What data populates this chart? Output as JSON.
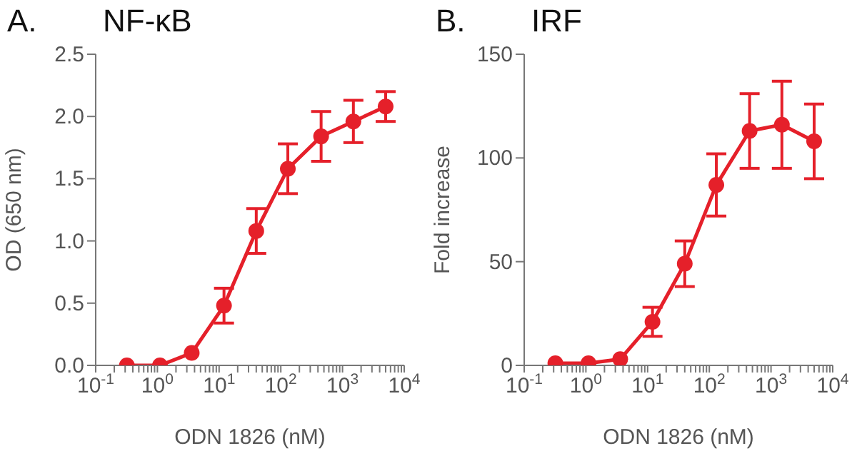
{
  "chart_data": [
    {
      "type": "line",
      "title": "NF-κB",
      "annotations": [
        "A."
      ],
      "xlabel": "ODN 1826 (nM)",
      "ylabel": "OD (650 nm)",
      "log": "x",
      "marker": "circle",
      "line_style": "solid",
      "color": "#e5202a",
      "x": [
        0.32,
        1.1,
        3.6,
        12,
        40,
        130,
        450,
        1500,
        5000
      ],
      "values": [
        0,
        0,
        0.1,
        0.48,
        1.08,
        1.58,
        1.84,
        1.96,
        2.08
      ],
      "errors": [
        null,
        null,
        null,
        0.14,
        0.18,
        0.2,
        0.2,
        0.17,
        0.12
      ],
      "xlim": [
        0.1,
        10000
      ],
      "xticks": [
        {
          "value": 0.1,
          "label": "10$^{-1}$"
        },
        {
          "value": 0.2,
          "label": null
        },
        {
          "value": 0.3,
          "label": null
        },
        {
          "value": 0.4,
          "label": null
        },
        {
          "value": 0.5,
          "label": null
        },
        {
          "value": 0.6,
          "label": null
        },
        {
          "value": 0.7,
          "label": null
        },
        {
          "value": 0.8,
          "label": null
        },
        {
          "value": 0.9,
          "label": null
        },
        {
          "value": 1,
          "label": "10$^{0}$"
        },
        {
          "value": 2,
          "label": null
        },
        {
          "value": 3,
          "label": null
        },
        {
          "value": 4,
          "label": null
        },
        {
          "value": 5,
          "label": null
        },
        {
          "value": 6,
          "label": null
        },
        {
          "value": 7,
          "label": null
        },
        {
          "value": 8,
          "label": null
        },
        {
          "value": 9,
          "label": null
        },
        {
          "value": 10,
          "label": "10$^{1}$"
        },
        {
          "value": 20,
          "label": null
        },
        {
          "value": 30,
          "label": null
        },
        {
          "value": 40,
          "label": null
        },
        {
          "value": 50,
          "label": null
        },
        {
          "value": 60,
          "label": null
        },
        {
          "value": 70,
          "label": null
        },
        {
          "value": 80,
          "label": null
        },
        {
          "value": 90,
          "label": null
        },
        {
          "value": 100,
          "label": "10$^{2}$"
        },
        {
          "value": 200,
          "label": null
        },
        {
          "value": 300,
          "label": null
        },
        {
          "value": 400,
          "label": null
        },
        {
          "value": 500,
          "label": null
        },
        {
          "value": 600,
          "label": null
        },
        {
          "value": 700,
          "label": null
        },
        {
          "value": 800,
          "label": null
        },
        {
          "value": 900,
          "label": null
        },
        {
          "value": 1000,
          "label": "10$^{3}$"
        },
        {
          "value": 2000,
          "label": null
        },
        {
          "value": 3000,
          "label": null
        },
        {
          "value": 4000,
          "label": null
        },
        {
          "value": 5000,
          "label": null
        },
        {
          "value": 6000,
          "label": null
        },
        {
          "value": 7000,
          "label": null
        },
        {
          "value": 8000,
          "label": null
        },
        {
          "value": 9000,
          "label": null
        },
        {
          "value": 10000,
          "label": "10$^{4}$"
        }
      ],
      "ylim": [
        0,
        2.5
      ],
      "yticks": [
        {
          "value": 0,
          "label": "0.0"
        },
        {
          "value": 0.5,
          "label": "0.5"
        },
        {
          "value": 1,
          "label": "1.0"
        },
        {
          "value": 1.5,
          "label": "1.5"
        },
        {
          "value": 2,
          "label": "2.0"
        },
        {
          "value": 2.5,
          "label": "2.5"
        }
      ]
    },
    {
      "type": "line",
      "title": "IRF",
      "annotations": [
        "B."
      ],
      "xlabel": "ODN 1826 (nM)",
      "ylabel": "Fold increase",
      "log": "x",
      "marker": "circle",
      "line_style": "solid",
      "color": "#e5202a",
      "x": [
        0.32,
        1.1,
        3.6,
        12,
        40,
        130,
        450,
        1500,
        5000
      ],
      "values": [
        1,
        1,
        3,
        21,
        49,
        87,
        113,
        116,
        108
      ],
      "errors": [
        null,
        null,
        null,
        7,
        11,
        15,
        18,
        21,
        18
      ],
      "xlim": [
        0.1,
        10000
      ],
      "xticks": [
        {
          "value": 0.1,
          "label": "10$^{-1}$"
        },
        {
          "value": 0.2,
          "label": null
        },
        {
          "value": 0.3,
          "label": null
        },
        {
          "value": 0.4,
          "label": null
        },
        {
          "value": 0.5,
          "label": null
        },
        {
          "value": 0.6,
          "label": null
        },
        {
          "value": 0.7,
          "label": null
        },
        {
          "value": 0.8,
          "label": null
        },
        {
          "value": 0.9,
          "label": null
        },
        {
          "value": 1,
          "label": "10$^{0}$"
        },
        {
          "value": 2,
          "label": null
        },
        {
          "value": 3,
          "label": null
        },
        {
          "value": 4,
          "label": null
        },
        {
          "value": 5,
          "label": null
        },
        {
          "value": 6,
          "label": null
        },
        {
          "value": 7,
          "label": null
        },
        {
          "value": 8,
          "label": null
        },
        {
          "value": 9,
          "label": null
        },
        {
          "value": 10,
          "label": "10$^{1}$"
        },
        {
          "value": 20,
          "label": null
        },
        {
          "value": 30,
          "label": null
        },
        {
          "value": 40,
          "label": null
        },
        {
          "value": 50,
          "label": null
        },
        {
          "value": 60,
          "label": null
        },
        {
          "value": 70,
          "label": null
        },
        {
          "value": 80,
          "label": null
        },
        {
          "value": 90,
          "label": null
        },
        {
          "value": 100,
          "label": "10$^{2}$"
        },
        {
          "value": 200,
          "label": null
        },
        {
          "value": 300,
          "label": null
        },
        {
          "value": 400,
          "label": null
        },
        {
          "value": 500,
          "label": null
        },
        {
          "value": 600,
          "label": null
        },
        {
          "value": 700,
          "label": null
        },
        {
          "value": 800,
          "label": null
        },
        {
          "value": 900,
          "label": null
        },
        {
          "value": 1000,
          "label": "10$^{3}$"
        },
        {
          "value": 2000,
          "label": null
        },
        {
          "value": 3000,
          "label": null
        },
        {
          "value": 4000,
          "label": null
        },
        {
          "value": 5000,
          "label": null
        },
        {
          "value": 6000,
          "label": null
        },
        {
          "value": 7000,
          "label": null
        },
        {
          "value": 8000,
          "label": null
        },
        {
          "value": 9000,
          "label": null
        },
        {
          "value": 10000,
          "label": "10$^{4}$"
        }
      ],
      "ylim": [
        0,
        150
      ],
      "yticks": [
        0,
        50,
        100,
        150
      ]
    }
  ]
}
